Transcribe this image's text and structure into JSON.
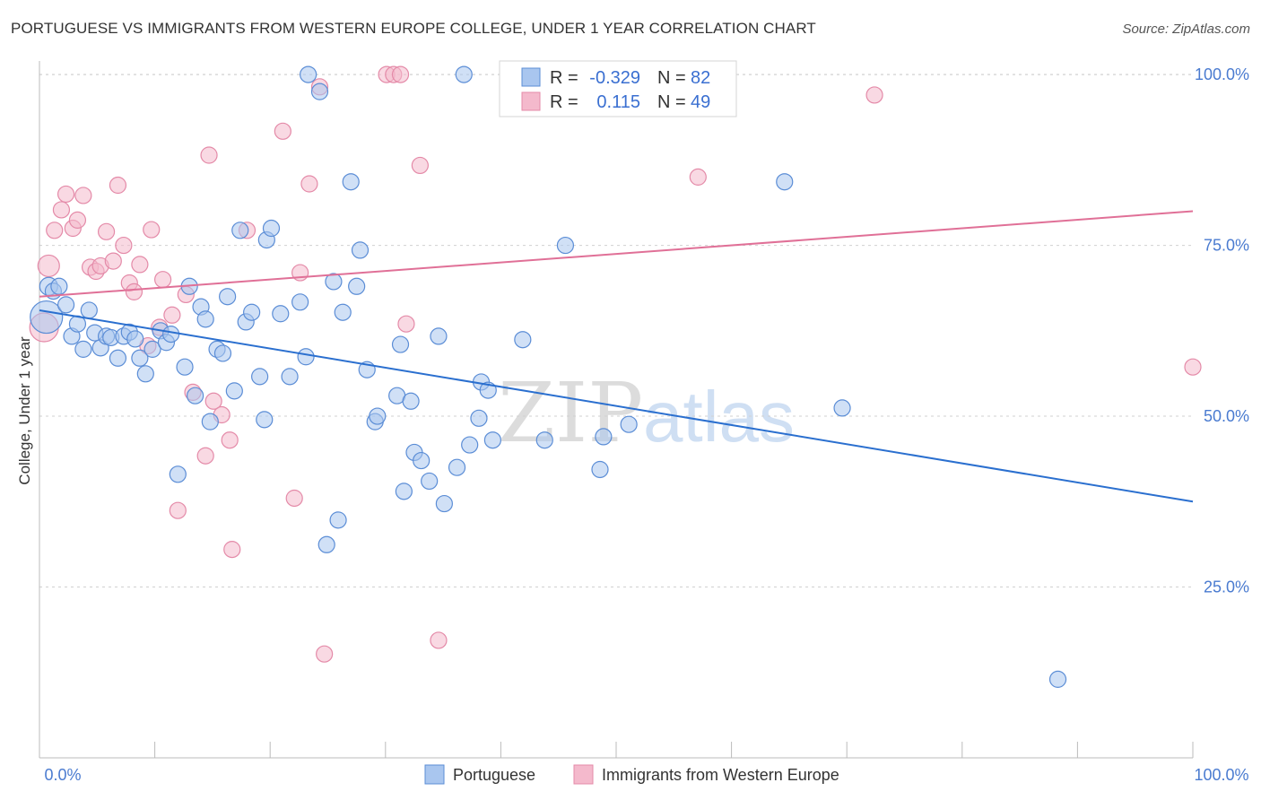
{
  "title": "PORTUGUESE VS IMMIGRANTS FROM WESTERN EUROPE COLLEGE, UNDER 1 YEAR CORRELATION CHART",
  "source": "Source: ZipAtlas.com",
  "watermark": {
    "zip": "ZIP",
    "atlas": "atlas"
  },
  "colors": {
    "blue_fill": "#a9c6ef",
    "blue_stroke": "#5b8dd6",
    "blue_line": "#2a6fcf",
    "pink_fill": "#f4b9cc",
    "pink_stroke": "#e48aa8",
    "pink_line": "#e07097",
    "tick_label": "#4a7bd0",
    "grid": "#d0d0d0"
  },
  "stats_legend": {
    "rows": [
      {
        "r_label": "R =",
        "r_value": "-0.329",
        "n_label": "N =",
        "n_value": "82"
      },
      {
        "r_label": "R =",
        "r_value": "0.115",
        "n_label": "N =",
        "n_value": "49"
      }
    ]
  },
  "chart_data": {
    "type": "scatter",
    "title": "PORTUGUESE VS IMMIGRANTS FROM WESTERN EUROPE COLLEGE, UNDER 1 YEAR CORRELATION CHART",
    "xlabel": "",
    "ylabel": "College, Under 1 year",
    "xlim": [
      0,
      100
    ],
    "ylim": [
      0,
      105
    ],
    "x_tick_labels": [
      "0.0%",
      "100.0%"
    ],
    "y_tick_labels": [
      "25.0%",
      "50.0%",
      "75.0%",
      "100.0%"
    ],
    "y_ticks": [
      25,
      50,
      75,
      100
    ],
    "grid": "horizontal dashed",
    "legend_position": "bottom",
    "series": [
      {
        "name": "Portuguese",
        "color": "#a9c6ef",
        "trend": {
          "x": [
            0,
            100
          ],
          "y": [
            65.5,
            37.5
          ]
        },
        "points": [
          {
            "x": 0.6,
            "y": 64.5,
            "s": 18
          },
          {
            "x": 0.8,
            "y": 69.0,
            "s": 10
          },
          {
            "x": 1.2,
            "y": 68.3,
            "s": 9
          },
          {
            "x": 1.7,
            "y": 69.0,
            "s": 9
          },
          {
            "x": 2.3,
            "y": 66.3,
            "s": 9
          },
          {
            "x": 2.8,
            "y": 61.7,
            "s": 9
          },
          {
            "x": 3.3,
            "y": 63.5,
            "s": 9
          },
          {
            "x": 3.8,
            "y": 59.8,
            "s": 9
          },
          {
            "x": 4.3,
            "y": 65.5,
            "s": 9
          },
          {
            "x": 4.8,
            "y": 62.2,
            "s": 9
          },
          {
            "x": 5.3,
            "y": 60.0,
            "s": 9
          },
          {
            "x": 5.8,
            "y": 61.7,
            "s": 9
          },
          {
            "x": 6.2,
            "y": 61.5,
            "s": 9
          },
          {
            "x": 6.8,
            "y": 58.5,
            "s": 9
          },
          {
            "x": 7.3,
            "y": 61.7,
            "s": 9
          },
          {
            "x": 7.8,
            "y": 62.3,
            "s": 9
          },
          {
            "x": 8.3,
            "y": 61.3,
            "s": 9
          },
          {
            "x": 8.7,
            "y": 58.5,
            "s": 9
          },
          {
            "x": 9.2,
            "y": 56.2,
            "s": 9
          },
          {
            "x": 9.8,
            "y": 59.8,
            "s": 9
          },
          {
            "x": 10.5,
            "y": 62.5,
            "s": 9
          },
          {
            "x": 11.0,
            "y": 60.8,
            "s": 9
          },
          {
            "x": 11.4,
            "y": 62.0,
            "s": 9
          },
          {
            "x": 12.0,
            "y": 41.5,
            "s": 9
          },
          {
            "x": 12.6,
            "y": 57.2,
            "s": 9
          },
          {
            "x": 13.0,
            "y": 69.0,
            "s": 9
          },
          {
            "x": 13.5,
            "y": 53.0,
            "s": 9
          },
          {
            "x": 14.0,
            "y": 66.0,
            "s": 9
          },
          {
            "x": 14.4,
            "y": 64.2,
            "s": 9
          },
          {
            "x": 14.8,
            "y": 49.2,
            "s": 9
          },
          {
            "x": 15.4,
            "y": 59.8,
            "s": 9
          },
          {
            "x": 15.9,
            "y": 59.2,
            "s": 9
          },
          {
            "x": 16.3,
            "y": 67.5,
            "s": 9
          },
          {
            "x": 16.9,
            "y": 53.7,
            "s": 9
          },
          {
            "x": 17.4,
            "y": 77.2,
            "s": 9
          },
          {
            "x": 17.9,
            "y": 63.8,
            "s": 9
          },
          {
            "x": 18.4,
            "y": 65.2,
            "s": 9
          },
          {
            "x": 19.1,
            "y": 55.8,
            "s": 9
          },
          {
            "x": 19.5,
            "y": 49.5,
            "s": 9
          },
          {
            "x": 19.7,
            "y": 75.8,
            "s": 9
          },
          {
            "x": 20.1,
            "y": 77.5,
            "s": 9
          },
          {
            "x": 20.9,
            "y": 65.0,
            "s": 9
          },
          {
            "x": 21.7,
            "y": 55.8,
            "s": 9
          },
          {
            "x": 22.6,
            "y": 66.7,
            "s": 9
          },
          {
            "x": 23.1,
            "y": 58.7,
            "s": 9
          },
          {
            "x": 23.3,
            "y": 100.0,
            "s": 9
          },
          {
            "x": 24.3,
            "y": 97.5,
            "s": 9
          },
          {
            "x": 24.9,
            "y": 31.2,
            "s": 9
          },
          {
            "x": 25.5,
            "y": 69.7,
            "s": 9
          },
          {
            "x": 25.9,
            "y": 34.8,
            "s": 9
          },
          {
            "x": 26.3,
            "y": 65.2,
            "s": 9
          },
          {
            "x": 27.0,
            "y": 84.3,
            "s": 9
          },
          {
            "x": 27.5,
            "y": 69.0,
            "s": 9
          },
          {
            "x": 27.8,
            "y": 74.3,
            "s": 9
          },
          {
            "x": 28.4,
            "y": 56.8,
            "s": 9
          },
          {
            "x": 29.1,
            "y": 49.2,
            "s": 9
          },
          {
            "x": 29.3,
            "y": 50.0,
            "s": 9
          },
          {
            "x": 31.0,
            "y": 53.0,
            "s": 9
          },
          {
            "x": 31.3,
            "y": 60.5,
            "s": 9
          },
          {
            "x": 31.6,
            "y": 39.0,
            "s": 9
          },
          {
            "x": 32.2,
            "y": 52.2,
            "s": 9
          },
          {
            "x": 32.5,
            "y": 44.7,
            "s": 9
          },
          {
            "x": 33.1,
            "y": 43.5,
            "s": 9
          },
          {
            "x": 33.8,
            "y": 40.5,
            "s": 9
          },
          {
            "x": 34.6,
            "y": 61.7,
            "s": 9
          },
          {
            "x": 35.1,
            "y": 37.2,
            "s": 9
          },
          {
            "x": 36.2,
            "y": 42.5,
            "s": 9
          },
          {
            "x": 36.8,
            "y": 100.0,
            "s": 9
          },
          {
            "x": 37.3,
            "y": 45.8,
            "s": 9
          },
          {
            "x": 38.1,
            "y": 49.7,
            "s": 9
          },
          {
            "x": 38.3,
            "y": 55.0,
            "s": 9
          },
          {
            "x": 38.9,
            "y": 53.8,
            "s": 9
          },
          {
            "x": 39.3,
            "y": 46.5,
            "s": 9
          },
          {
            "x": 41.9,
            "y": 61.2,
            "s": 9
          },
          {
            "x": 43.8,
            "y": 46.5,
            "s": 9
          },
          {
            "x": 45.6,
            "y": 75.0,
            "s": 9
          },
          {
            "x": 48.6,
            "y": 42.2,
            "s": 9
          },
          {
            "x": 48.9,
            "y": 47.0,
            "s": 9
          },
          {
            "x": 51.1,
            "y": 48.8,
            "s": 9
          },
          {
            "x": 64.6,
            "y": 84.3,
            "s": 9
          },
          {
            "x": 69.6,
            "y": 51.2,
            "s": 9
          },
          {
            "x": 88.3,
            "y": 11.5,
            "s": 9
          }
        ]
      },
      {
        "name": "Immigrants from Western Europe",
        "color": "#f4b9cc",
        "trend": {
          "x": [
            0,
            100
          ],
          "y": [
            67.5,
            80.0
          ]
        },
        "points": [
          {
            "x": 0.4,
            "y": 63.0,
            "s": 16
          },
          {
            "x": 0.8,
            "y": 72.0,
            "s": 12
          },
          {
            "x": 1.3,
            "y": 77.2,
            "s": 9
          },
          {
            "x": 1.9,
            "y": 80.2,
            "s": 9
          },
          {
            "x": 2.3,
            "y": 82.5,
            "s": 9
          },
          {
            "x": 2.9,
            "y": 77.5,
            "s": 9
          },
          {
            "x": 3.3,
            "y": 78.7,
            "s": 9
          },
          {
            "x": 3.8,
            "y": 82.3,
            "s": 9
          },
          {
            "x": 4.4,
            "y": 71.8,
            "s": 9
          },
          {
            "x": 4.9,
            "y": 71.2,
            "s": 9
          },
          {
            "x": 5.3,
            "y": 72.0,
            "s": 9
          },
          {
            "x": 5.8,
            "y": 77.0,
            "s": 9
          },
          {
            "x": 6.4,
            "y": 72.7,
            "s": 9
          },
          {
            "x": 6.8,
            "y": 83.8,
            "s": 9
          },
          {
            "x": 7.3,
            "y": 75.0,
            "s": 9
          },
          {
            "x": 7.8,
            "y": 69.5,
            "s": 9
          },
          {
            "x": 8.2,
            "y": 68.2,
            "s": 9
          },
          {
            "x": 8.7,
            "y": 72.2,
            "s": 9
          },
          {
            "x": 9.4,
            "y": 60.3,
            "s": 9
          },
          {
            "x": 9.7,
            "y": 77.3,
            "s": 9
          },
          {
            "x": 10.4,
            "y": 63.0,
            "s": 9
          },
          {
            "x": 10.7,
            "y": 70.0,
            "s": 9
          },
          {
            "x": 11.5,
            "y": 64.8,
            "s": 9
          },
          {
            "x": 12.0,
            "y": 36.2,
            "s": 9
          },
          {
            "x": 12.7,
            "y": 67.8,
            "s": 9
          },
          {
            "x": 13.3,
            "y": 53.5,
            "s": 9
          },
          {
            "x": 14.4,
            "y": 44.2,
            "s": 9
          },
          {
            "x": 14.7,
            "y": 88.2,
            "s": 9
          },
          {
            "x": 15.1,
            "y": 52.2,
            "s": 9
          },
          {
            "x": 15.8,
            "y": 50.2,
            "s": 9
          },
          {
            "x": 16.5,
            "y": 46.5,
            "s": 9
          },
          {
            "x": 16.7,
            "y": 30.5,
            "s": 9
          },
          {
            "x": 18.0,
            "y": 77.2,
            "s": 9
          },
          {
            "x": 21.1,
            "y": 91.7,
            "s": 9
          },
          {
            "x": 22.1,
            "y": 38.0,
            "s": 9
          },
          {
            "x": 22.6,
            "y": 71.0,
            "s": 9
          },
          {
            "x": 23.4,
            "y": 84.0,
            "s": 9
          },
          {
            "x": 24.3,
            "y": 98.2,
            "s": 9
          },
          {
            "x": 24.7,
            "y": 15.2,
            "s": 9
          },
          {
            "x": 30.1,
            "y": 100.0,
            "s": 9
          },
          {
            "x": 30.7,
            "y": 100.0,
            "s": 9
          },
          {
            "x": 31.3,
            "y": 100.0,
            "s": 9
          },
          {
            "x": 31.8,
            "y": 63.5,
            "s": 9
          },
          {
            "x": 33.0,
            "y": 86.7,
            "s": 9
          },
          {
            "x": 34.6,
            "y": 17.2,
            "s": 9
          },
          {
            "x": 47.1,
            "y": 100.0,
            "s": 9
          },
          {
            "x": 57.1,
            "y": 85.0,
            "s": 9
          },
          {
            "x": 72.4,
            "y": 97.0,
            "s": 9
          },
          {
            "x": 100.0,
            "y": 57.2,
            "s": 9
          }
        ]
      }
    ]
  },
  "bottom_legend": {
    "items": [
      "Portuguese",
      "Immigrants from Western Europe"
    ]
  }
}
